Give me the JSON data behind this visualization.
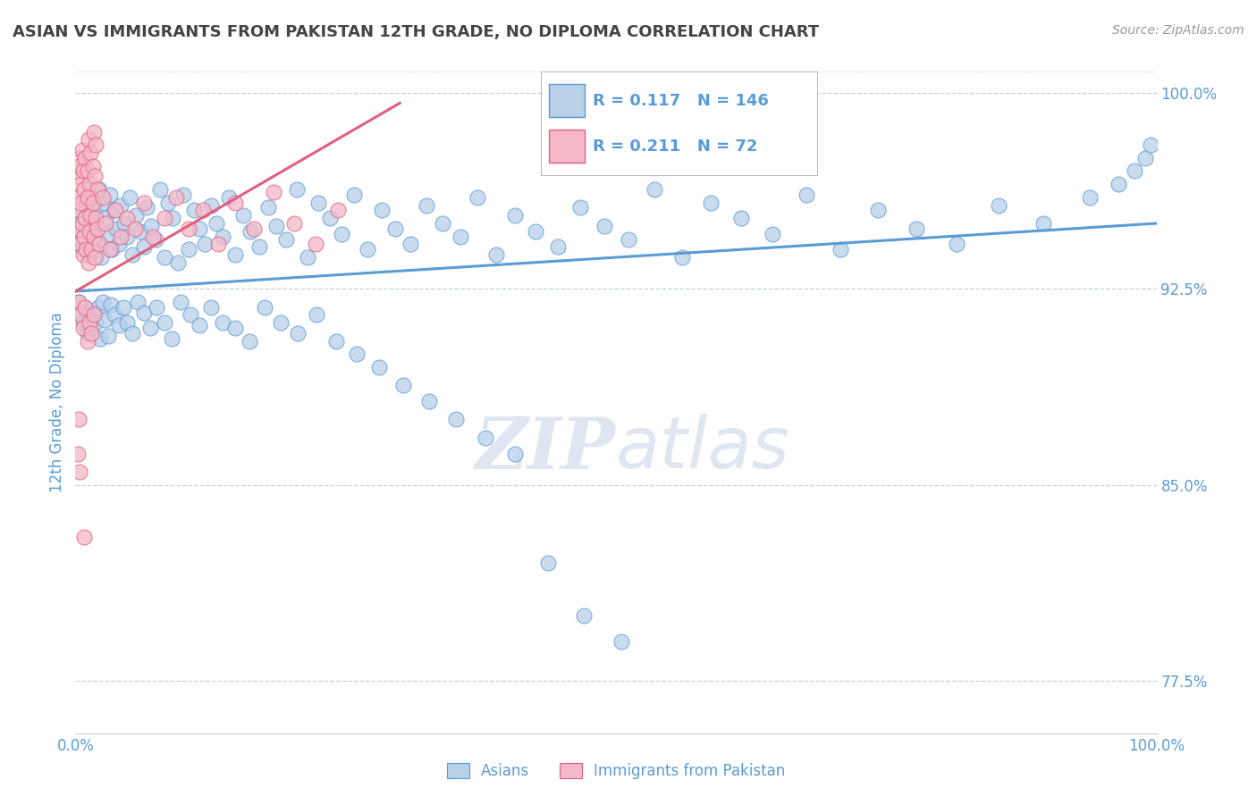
{
  "title": "ASIAN VS IMMIGRANTS FROM PAKISTAN 12TH GRADE, NO DIPLOMA CORRELATION CHART",
  "source": "Source: ZipAtlas.com",
  "ylabel_left": "12th Grade, No Diploma",
  "xmin": 0.0,
  "xmax": 1.0,
  "ymin": 0.755,
  "ymax": 1.008,
  "blue_R": 0.117,
  "blue_N": 146,
  "pink_R": 0.211,
  "pink_N": 72,
  "blue_color": "#b8d0e8",
  "pink_color": "#f5b8c8",
  "blue_edge_color": "#5b9bd5",
  "pink_edge_color": "#e06080",
  "title_color": "#444444",
  "axis_label_color": "#5b9bd5",
  "tick_color": "#5b9bd5",
  "grid_color": "#c8d0dc",
  "watermark_color": "#dce4f0",
  "legend_label_blue": "Asians",
  "legend_label_pink": "Immigrants from Pakistan",
  "yticks": [
    0.775,
    0.85,
    0.925,
    1.0
  ],
  "ytick_labels": [
    "77.5%",
    "85.0%",
    "92.5%",
    "100.0%"
  ],
  "blue_trendline_x": [
    0.0,
    1.0
  ],
  "blue_trendline_y": [
    0.924,
    0.95
  ],
  "pink_trendline_x": [
    0.0,
    0.3
  ],
  "pink_trendline_y": [
    0.924,
    0.996
  ],
  "blue_scatter_x": [
    0.002,
    0.003,
    0.004,
    0.005,
    0.006,
    0.007,
    0.008,
    0.009,
    0.01,
    0.011,
    0.012,
    0.013,
    0.014,
    0.015,
    0.016,
    0.017,
    0.018,
    0.02,
    0.022,
    0.024,
    0.026,
    0.028,
    0.03,
    0.032,
    0.034,
    0.036,
    0.038,
    0.04,
    0.042,
    0.045,
    0.048,
    0.05,
    0.053,
    0.056,
    0.06,
    0.063,
    0.066,
    0.07,
    0.074,
    0.078,
    0.082,
    0.086,
    0.09,
    0.095,
    0.1,
    0.105,
    0.11,
    0.115,
    0.12,
    0.125,
    0.13,
    0.136,
    0.142,
    0.148,
    0.155,
    0.162,
    0.17,
    0.178,
    0.186,
    0.195,
    0.205,
    0.215,
    0.225,
    0.235,
    0.246,
    0.258,
    0.27,
    0.283,
    0.296,
    0.31,
    0.325,
    0.34,
    0.356,
    0.372,
    0.389,
    0.407,
    0.426,
    0.446,
    0.467,
    0.489,
    0.512,
    0.536,
    0.561,
    0.588,
    0.616,
    0.645,
    0.676,
    0.708,
    0.742,
    0.778,
    0.815,
    0.854,
    0.895,
    0.938,
    0.965,
    0.98,
    0.99,
    0.995,
    0.003,
    0.005,
    0.007,
    0.009,
    0.011,
    0.013,
    0.015,
    0.017,
    0.019,
    0.021,
    0.023,
    0.025,
    0.027,
    0.03,
    0.033,
    0.036,
    0.04,
    0.044,
    0.048,
    0.053,
    0.058,
    0.063,
    0.069,
    0.075,
    0.082,
    0.089,
    0.097,
    0.106,
    0.115,
    0.125,
    0.136,
    0.148,
    0.161,
    0.175,
    0.19,
    0.206,
    0.223,
    0.241,
    0.26,
    0.281,
    0.303,
    0.327,
    0.352,
    0.379,
    0.407,
    0.437,
    0.47,
    0.505
  ],
  "blue_scatter_y": [
    0.945,
    0.95,
    0.942,
    0.948,
    0.955,
    0.94,
    0.952,
    0.946,
    0.943,
    0.957,
    0.938,
    0.96,
    0.953,
    0.947,
    0.941,
    0.956,
    0.949,
    0.944,
    0.963,
    0.937,
    0.958,
    0.952,
    0.946,
    0.961,
    0.94,
    0.955,
    0.948,
    0.942,
    0.957,
    0.95,
    0.945,
    0.96,
    0.938,
    0.953,
    0.947,
    0.941,
    0.956,
    0.949,
    0.944,
    0.963,
    0.937,
    0.958,
    0.952,
    0.935,
    0.961,
    0.94,
    0.955,
    0.948,
    0.942,
    0.957,
    0.95,
    0.945,
    0.96,
    0.938,
    0.953,
    0.947,
    0.941,
    0.956,
    0.949,
    0.944,
    0.963,
    0.937,
    0.958,
    0.952,
    0.946,
    0.961,
    0.94,
    0.955,
    0.948,
    0.942,
    0.957,
    0.95,
    0.945,
    0.96,
    0.938,
    0.953,
    0.947,
    0.941,
    0.956,
    0.949,
    0.944,
    0.963,
    0.937,
    0.958,
    0.952,
    0.946,
    0.961,
    0.94,
    0.955,
    0.948,
    0.942,
    0.957,
    0.95,
    0.96,
    0.965,
    0.97,
    0.975,
    0.98,
    0.92,
    0.916,
    0.912,
    0.918,
    0.908,
    0.914,
    0.91,
    0.916,
    0.912,
    0.918,
    0.906,
    0.92,
    0.913,
    0.907,
    0.919,
    0.915,
    0.911,
    0.918,
    0.912,
    0.908,
    0.92,
    0.916,
    0.91,
    0.918,
    0.912,
    0.906,
    0.92,
    0.915,
    0.911,
    0.918,
    0.912,
    0.91,
    0.905,
    0.918,
    0.912,
    0.908,
    0.915,
    0.905,
    0.9,
    0.895,
    0.888,
    0.882,
    0.875,
    0.868,
    0.862,
    0.82,
    0.8,
    0.79
  ],
  "pink_scatter_x": [
    0.001,
    0.002,
    0.003,
    0.004,
    0.005,
    0.006,
    0.007,
    0.008,
    0.009,
    0.01,
    0.011,
    0.012,
    0.013,
    0.014,
    0.015,
    0.016,
    0.017,
    0.018,
    0.019,
    0.02,
    0.002,
    0.003,
    0.004,
    0.005,
    0.006,
    0.007,
    0.008,
    0.009,
    0.01,
    0.011,
    0.012,
    0.013,
    0.014,
    0.015,
    0.016,
    0.017,
    0.018,
    0.019,
    0.02,
    0.022,
    0.025,
    0.028,
    0.032,
    0.037,
    0.042,
    0.048,
    0.055,
    0.063,
    0.072,
    0.082,
    0.093,
    0.105,
    0.118,
    0.132,
    0.148,
    0.165,
    0.183,
    0.202,
    0.222,
    0.243,
    0.003,
    0.005,
    0.007,
    0.009,
    0.011,
    0.013,
    0.015,
    0.017,
    0.002,
    0.003,
    0.004,
    0.008
  ],
  "pink_scatter_y": [
    0.968,
    0.975,
    0.96,
    0.972,
    0.965,
    0.978,
    0.97,
    0.963,
    0.975,
    0.958,
    0.97,
    0.982,
    0.965,
    0.977,
    0.96,
    0.972,
    0.985,
    0.968,
    0.98,
    0.963,
    0.948,
    0.955,
    0.942,
    0.958,
    0.95,
    0.938,
    0.945,
    0.952,
    0.94,
    0.96,
    0.935,
    0.947,
    0.953,
    0.94,
    0.958,
    0.945,
    0.937,
    0.952,
    0.948,
    0.942,
    0.96,
    0.95,
    0.94,
    0.955,
    0.945,
    0.952,
    0.948,
    0.958,
    0.945,
    0.952,
    0.96,
    0.948,
    0.955,
    0.942,
    0.958,
    0.948,
    0.962,
    0.95,
    0.942,
    0.955,
    0.92,
    0.915,
    0.91,
    0.918,
    0.905,
    0.912,
    0.908,
    0.915,
    0.862,
    0.875,
    0.855,
    0.83
  ]
}
